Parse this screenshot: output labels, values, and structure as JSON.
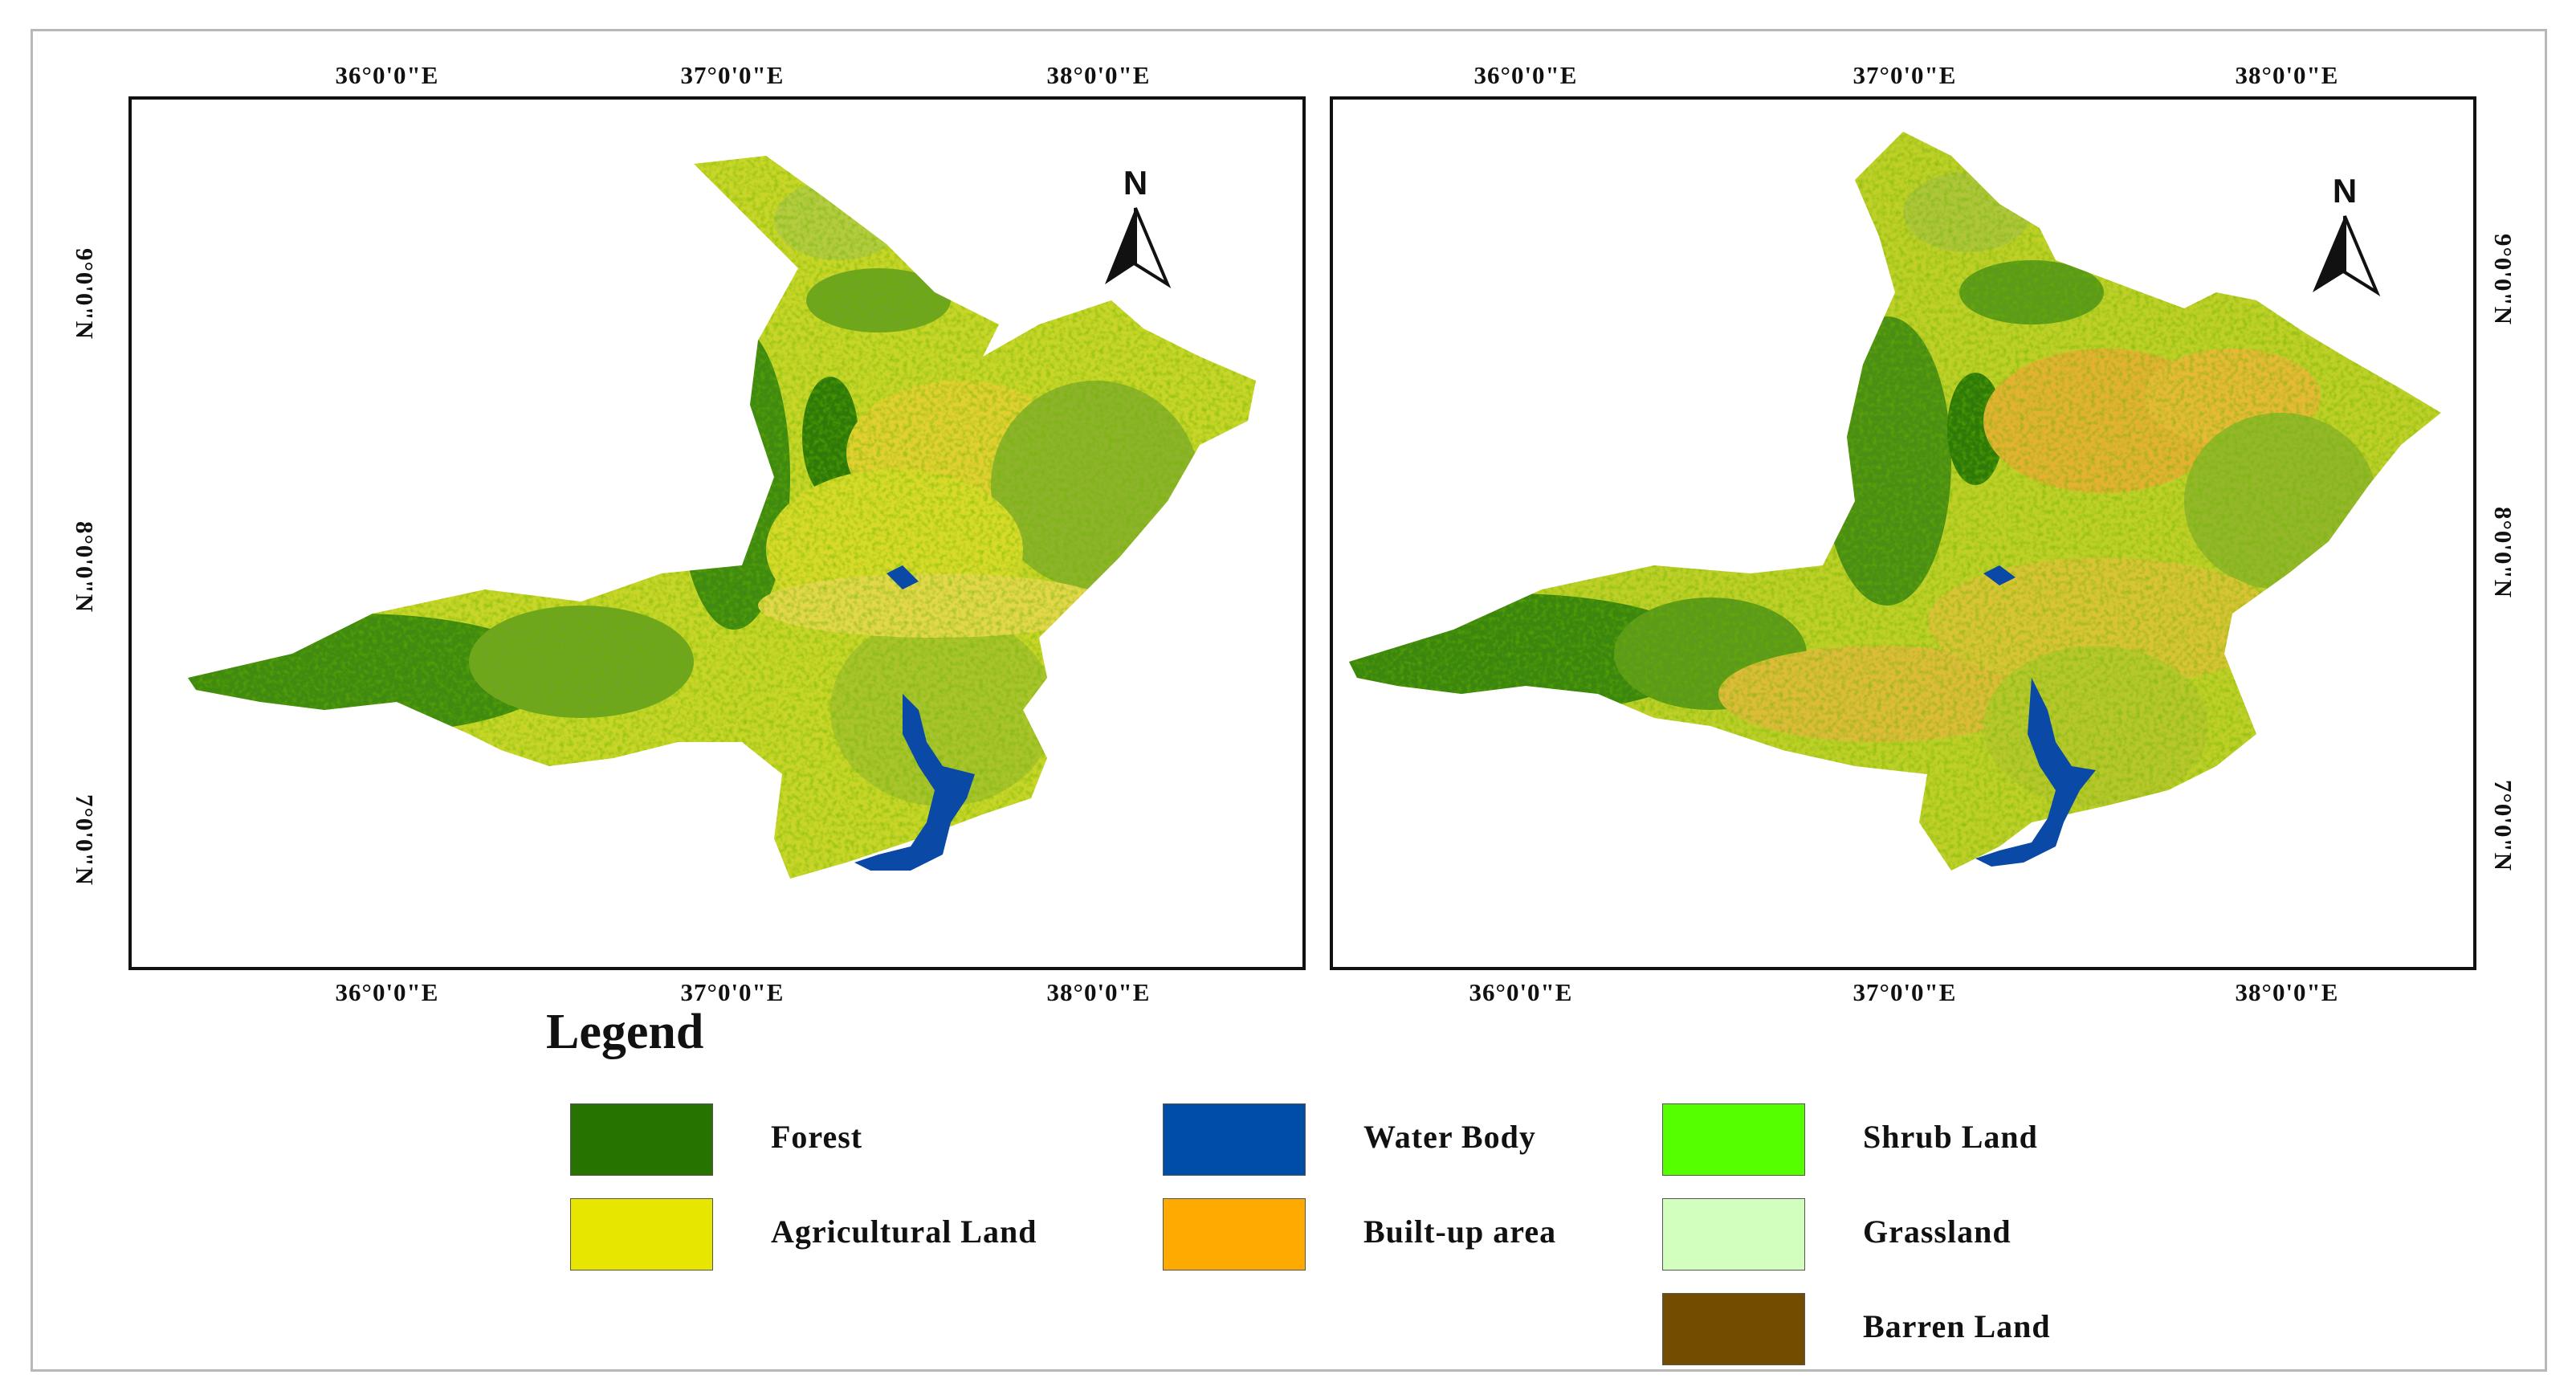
{
  "maps": [
    {
      "id": "left",
      "lon_labels_top": [
        "36°0'0\"E",
        "37°0'0\"E",
        "38°0'0\"E"
      ],
      "lon_labels_bottom": [
        "36°0'0\"E",
        "37°0'0\"E",
        "38°0'0\"E"
      ],
      "lat_labels": [
        "9°0'0\"N",
        "8°0'0\"N",
        "7°0'0\"N"
      ],
      "lat_side": "left",
      "north_label": "N"
    },
    {
      "id": "right",
      "lon_labels_top": [
        "36°0'0\"E",
        "37°0'0\"E",
        "38°0'0\"E"
      ],
      "lon_labels_bottom": [
        "36°0'0\"E",
        "37°0'0\"E",
        "38°0'0\"E"
      ],
      "lat_labels": [
        "9°0'0\"N",
        "8°0'0\"N",
        "7°0'0\"N"
      ],
      "lat_side": "right",
      "north_label": "N"
    }
  ],
  "legend": {
    "title": "Legend",
    "items": [
      {
        "label": "Forest",
        "color": "#267300"
      },
      {
        "label": "Water Body",
        "color": "#004DA8"
      },
      {
        "label": "Shrub Land",
        "color": "#55FF00"
      },
      {
        "label": "Agricultural Land",
        "color": "#E6E600"
      },
      {
        "label": "Built-up area",
        "color": "#FFAA00"
      },
      {
        "label": "Grassland",
        "color": "#D3FFBE"
      },
      {
        "label": "Barren Land",
        "color": "#734C00"
      }
    ]
  }
}
